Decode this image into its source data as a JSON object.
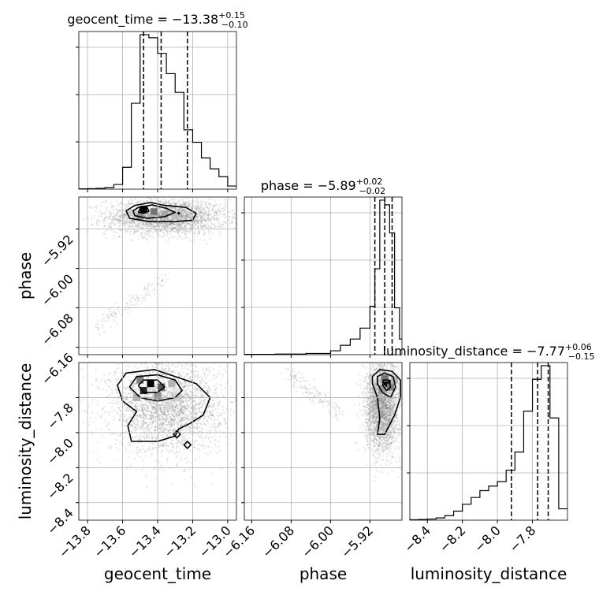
{
  "chart_data": {
    "type": "corner",
    "parameters": [
      {
        "name": "geocent_time",
        "range": [
          -13.85,
          -12.95
        ],
        "ticks": [
          -13.8,
          -13.6,
          -13.4,
          -13.2,
          -13.0
        ],
        "tick_labels": [
          "−13.8",
          "−13.6",
          "−13.4",
          "−13.2",
          "−13.0"
        ],
        "title": {
          "base": "geocent_time = −13.38",
          "sup": "+0.15",
          "sub": "−0.10"
        },
        "quantiles": [
          -13.48,
          -13.38,
          -13.23
        ],
        "hist_bins": [
          -13.85,
          -13.8,
          -13.75,
          -13.7,
          -13.65,
          -13.6,
          -13.55,
          -13.5,
          -13.45,
          -13.4,
          -13.35,
          -13.3,
          -13.25,
          -13.2,
          -13.15,
          -13.1,
          -13.05,
          -13.0,
          -12.95
        ],
        "hist_values": [
          0.2,
          0.3,
          0.5,
          1.0,
          3.0,
          14.0,
          55.0,
          99.0,
          97.0,
          87.0,
          74.0,
          62.0,
          38.0,
          30.0,
          20.0,
          13.0,
          8.0,
          2.0
        ]
      },
      {
        "name": "phase",
        "range": [
          -6.175,
          -5.855
        ],
        "ticks": [
          -6.16,
          -6.08,
          -6.0,
          -5.92
        ],
        "tick_labels": [
          "−6.16",
          "−6.08",
          "−6.00",
          "−5.92"
        ],
        "title": {
          "base": "phase = −5.89",
          "sup": "+0.02",
          "sub": "−0.02"
        },
        "quantiles": [
          -5.91,
          -5.89,
          -5.875
        ],
        "hist_bins": [
          -6.175,
          -6.1125,
          -6.05,
          -6.0,
          -5.98,
          -5.96,
          -5.94,
          -5.92,
          -5.91,
          -5.9,
          -5.89,
          -5.88,
          -5.87,
          -5.86,
          -5.855
        ],
        "hist_values": [
          0.2,
          0.4,
          0.8,
          2.5,
          6.0,
          10.0,
          17.0,
          31.0,
          55.0,
          99.0,
          96.0,
          78.0,
          30.0,
          10.0
        ]
      },
      {
        "name": "luminosity_distance",
        "range": [
          -8.5,
          -7.6
        ],
        "ticks": [
          -8.4,
          -8.2,
          -8.0,
          -7.8
        ],
        "tick_labels": [
          "−8.4",
          "−8.2",
          "−8.0",
          "−7.8"
        ],
        "title": {
          "base": "luminosity_distance = −7.77",
          "sup": "+0.06",
          "sub": "−0.15"
        },
        "quantiles": [
          -7.92,
          -7.77,
          -7.71
        ],
        "hist_bins": [
          -8.5,
          -8.45,
          -8.4,
          -8.35,
          -8.3,
          -8.25,
          -8.2,
          -8.15,
          -8.1,
          -8.05,
          -8.0,
          -7.95,
          -7.9,
          -7.85,
          -7.8,
          -7.75,
          -7.7,
          -7.65,
          -7.6
        ],
        "hist_values": [
          0.2,
          0.3,
          0.5,
          1.0,
          2.0,
          4.0,
          7.0,
          10.0,
          13.0,
          15.0,
          17.0,
          22.0,
          30.0,
          48.0,
          62.0,
          68.0,
          45.0,
          5.0
        ]
      }
    ],
    "panels_2d": [
      {
        "x": "geocent_time",
        "y": "phase",
        "x_range": [
          -13.85,
          -12.95
        ],
        "y_range": [
          -6.175,
          -5.855
        ],
        "y_ticks": [
          -6.16,
          -6.08,
          -6.0,
          -5.92
        ],
        "y_tick_labels": [
          "−6.16",
          "−6.08",
          "−6.00",
          "−5.92"
        ],
        "samples_main": {
          "center": [
            -13.35,
            -5.895
          ],
          "spread": [
            0.17,
            0.018
          ],
          "count": 2600
        },
        "samples_tail": {
          "from": [
            -13.75,
            -6.12
          ],
          "to": [
            -13.35,
            -6.02
          ],
          "count": 140
        },
        "density": [
          {
            "x": -13.48,
            "y": -5.88,
            "level": 1.0
          },
          {
            "x": -13.42,
            "y": -5.885,
            "level": 0.55
          },
          {
            "x": -13.5,
            "y": -5.895,
            "level": 0.45
          },
          {
            "x": -13.36,
            "y": -5.89,
            "level": 0.35
          },
          {
            "x": -13.3,
            "y": -5.893,
            "level": 0.25
          },
          {
            "x": -13.44,
            "y": -5.898,
            "level": 0.3
          },
          {
            "x": -13.54,
            "y": -5.887,
            "level": 0.2
          }
        ],
        "contours": [
          [
            [
              -13.53,
              -5.872
            ],
            [
              -13.44,
              -5.866
            ],
            [
              -13.36,
              -5.872
            ],
            [
              -13.24,
              -5.876
            ],
            [
              -13.18,
              -5.888
            ],
            [
              -13.2,
              -5.902
            ],
            [
              -13.3,
              -5.905
            ],
            [
              -13.45,
              -5.905
            ],
            [
              -13.56,
              -5.898
            ],
            [
              -13.58,
              -5.883
            ],
            [
              -13.53,
              -5.872
            ]
          ],
          [
            [
              -13.51,
              -5.876
            ],
            [
              -13.43,
              -5.871
            ],
            [
              -13.35,
              -5.878
            ],
            [
              -13.3,
              -5.886
            ],
            [
              -13.36,
              -5.895
            ],
            [
              -13.46,
              -5.898
            ],
            [
              -13.53,
              -5.893
            ],
            [
              -13.54,
              -5.883
            ],
            [
              -13.51,
              -5.876
            ]
          ],
          [
            [
              -13.5,
              -5.878
            ],
            [
              -13.46,
              -5.876
            ],
            [
              -13.45,
              -5.884
            ],
            [
              -13.48,
              -5.888
            ],
            [
              -13.51,
              -5.886
            ],
            [
              -13.5,
              -5.878
            ]
          ]
        ],
        "peak_marker": [
          -13.28,
          -5.888
        ]
      },
      {
        "x": "geocent_time",
        "y": "luminosity_distance",
        "x_range": [
          -13.85,
          -12.95
        ],
        "y_range": [
          -8.5,
          -7.6
        ],
        "y_ticks": [
          -8.4,
          -8.2,
          -8.0,
          -7.8
        ],
        "y_tick_labels": [
          "−8.4",
          "−8.2",
          "−8.0",
          "−7.8"
        ],
        "samples_main": {
          "center": [
            -13.35,
            -7.85
          ],
          "spread": [
            0.16,
            0.13
          ],
          "count": 3000
        },
        "density": [
          {
            "x": -13.44,
            "y": -7.72,
            "level": 1.0
          },
          {
            "x": -13.48,
            "y": -7.76,
            "level": 0.85
          },
          {
            "x": -13.38,
            "y": -7.74,
            "level": 0.65
          },
          {
            "x": -13.5,
            "y": -7.7,
            "level": 0.5
          },
          {
            "x": -13.4,
            "y": -7.79,
            "level": 0.45
          },
          {
            "x": -13.32,
            "y": -7.72,
            "level": 0.3
          },
          {
            "x": -13.28,
            "y": -7.8,
            "level": 0.2
          },
          {
            "x": -13.52,
            "y": -7.8,
            "level": 0.3
          },
          {
            "x": -13.34,
            "y": -7.85,
            "level": 0.15
          }
        ],
        "contours": [
          [
            [
              -13.58,
              -7.66
            ],
            [
              -13.42,
              -7.64
            ],
            [
              -13.3,
              -7.68
            ],
            [
              -13.18,
              -7.72
            ],
            [
              -13.1,
              -7.8
            ],
            [
              -13.14,
              -7.9
            ],
            [
              -13.22,
              -7.95
            ],
            [
              -13.28,
              -7.98
            ],
            [
              -13.3,
              -8.02
            ],
            [
              -13.4,
              -8.05
            ],
            [
              -13.55,
              -8.05
            ],
            [
              -13.57,
              -7.96
            ],
            [
              -13.52,
              -7.88
            ],
            [
              -13.6,
              -7.82
            ],
            [
              -13.63,
              -7.73
            ],
            [
              -13.58,
              -7.66
            ]
          ],
          [
            [
              -13.52,
              -7.68
            ],
            [
              -13.4,
              -7.67
            ],
            [
              -13.3,
              -7.7
            ],
            [
              -13.26,
              -7.76
            ],
            [
              -13.3,
              -7.8
            ],
            [
              -13.4,
              -7.82
            ],
            [
              -13.5,
              -7.8
            ],
            [
              -13.56,
              -7.74
            ],
            [
              -13.52,
              -7.68
            ]
          ],
          [
            [
              -13.48,
              -7.7
            ],
            [
              -13.4,
              -7.7
            ],
            [
              -13.36,
              -7.74
            ],
            [
              -13.4,
              -7.77
            ],
            [
              -13.48,
              -7.77
            ],
            [
              -13.51,
              -7.73
            ],
            [
              -13.48,
              -7.7
            ]
          ],
          [
            [
              -13.29,
              -7.99
            ],
            [
              -13.27,
              -8.01
            ],
            [
              -13.29,
              -8.03
            ],
            [
              -13.31,
              -8.01
            ],
            [
              -13.29,
              -7.99
            ]
          ],
          [
            [
              -13.23,
              -8.05
            ],
            [
              -13.21,
              -8.07
            ],
            [
              -13.23,
              -8.09
            ],
            [
              -13.25,
              -8.07
            ],
            [
              -13.23,
              -8.05
            ]
          ]
        ]
      },
      {
        "x": "phase",
        "y": "luminosity_distance",
        "x_range": [
          -6.175,
          -5.855
        ],
        "y_range": [
          -8.5,
          -7.6
        ],
        "samples_main": {
          "center": [
            -5.895,
            -7.85
          ],
          "spread": [
            0.017,
            0.13
          ],
          "count": 2800
        },
        "samples_tail": {
          "from": [
            -6.09,
            -7.65
          ],
          "to": [
            -5.98,
            -7.9
          ],
          "count": 160
        },
        "density": [
          {
            "x": -5.885,
            "y": -7.72,
            "level": 1.0
          },
          {
            "x": -5.89,
            "y": -7.69,
            "level": 0.55
          },
          {
            "x": -5.878,
            "y": -7.74,
            "level": 0.5
          },
          {
            "x": -5.895,
            "y": -7.75,
            "level": 0.4
          },
          {
            "x": -5.87,
            "y": -7.7,
            "level": 0.3
          },
          {
            "x": -5.88,
            "y": -7.79,
            "level": 0.2
          }
        ],
        "contours": [
          [
            [
              -5.915,
              -7.68
            ],
            [
              -5.9,
              -7.64
            ],
            [
              -5.875,
              -7.65
            ],
            [
              -5.858,
              -7.7
            ],
            [
              -5.858,
              -7.8
            ],
            [
              -5.87,
              -7.9
            ],
            [
              -5.89,
              -8.01
            ],
            [
              -5.905,
              -8.01
            ],
            [
              -5.9,
              -7.92
            ],
            [
              -5.905,
              -7.8
            ],
            [
              -5.915,
              -7.72
            ],
            [
              -5.915,
              -7.68
            ]
          ],
          [
            [
              -5.905,
              -7.68
            ],
            [
              -5.89,
              -7.66
            ],
            [
              -5.873,
              -7.68
            ],
            [
              -5.868,
              -7.74
            ],
            [
              -5.878,
              -7.8
            ],
            [
              -5.895,
              -7.77
            ],
            [
              -5.905,
              -7.72
            ],
            [
              -5.905,
              -7.68
            ]
          ],
          [
            [
              -5.893,
              -7.7
            ],
            [
              -5.882,
              -7.7
            ],
            [
              -5.878,
              -7.74
            ],
            [
              -5.886,
              -7.76
            ],
            [
              -5.894,
              -7.73
            ],
            [
              -5.893,
              -7.7
            ]
          ]
        ]
      }
    ]
  }
}
